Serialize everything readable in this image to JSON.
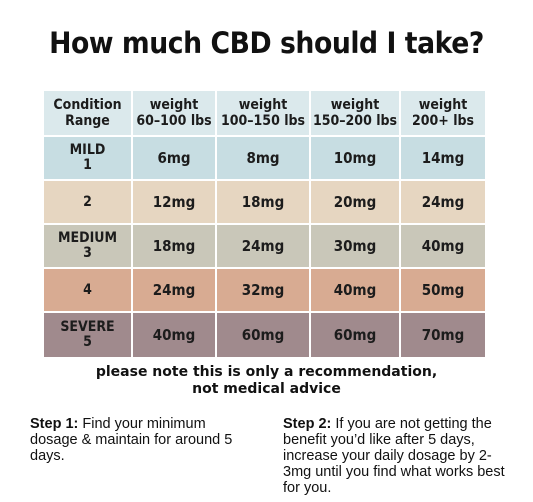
{
  "title": "How much CBD should I take?",
  "table": {
    "header_label": [
      "Condition",
      "Range"
    ],
    "columns": [
      [
        "weight",
        "60–100 lbs"
      ],
      [
        "weight",
        "100–150 lbs"
      ],
      [
        "weight",
        "150–200 lbs"
      ],
      [
        "weight",
        "200+ lbs"
      ]
    ],
    "rows": [
      {
        "label": [
          "MILD",
          "1"
        ],
        "values": [
          "6mg",
          "8mg",
          "10mg",
          "14mg"
        ],
        "color": "#c7dde2"
      },
      {
        "label": [
          "2"
        ],
        "values": [
          "12mg",
          "18mg",
          "20mg",
          "24mg"
        ],
        "color": "#e6d6c1"
      },
      {
        "label": [
          "MEDIUM",
          "3"
        ],
        "values": [
          "18mg",
          "24mg",
          "30mg",
          "40mg"
        ],
        "color": "#c9c7b9"
      },
      {
        "label": [
          "4"
        ],
        "values": [
          "24mg",
          "32mg",
          "40mg",
          "50mg"
        ],
        "color": "#d8ab92"
      },
      {
        "label": [
          "SEVERE",
          "5"
        ],
        "values": [
          "40mg",
          "60mg",
          "60mg",
          "70mg"
        ],
        "color": "#a08a8d"
      }
    ],
    "header_color": "#dbe9ec"
  },
  "note": [
    "please note this is only a recommendation,",
    "not medical advice"
  ],
  "step1": {
    "heading": "Step 1:",
    "text": " Find your minimum dosage & maintain for around 5 days."
  },
  "step2": {
    "heading": "Step 2:",
    "text": " If you are not getting the benefit you’d like after 5 days, increase your daily dosage by 2-3mg until you find what works best for you."
  }
}
